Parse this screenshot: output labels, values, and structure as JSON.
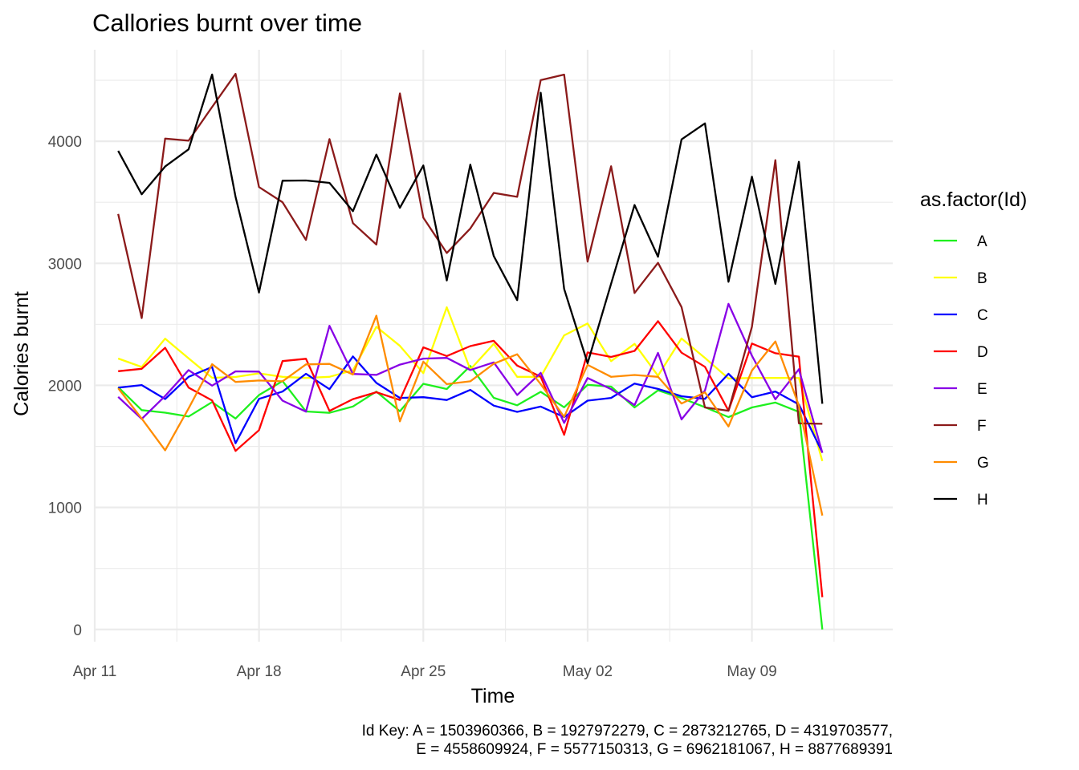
{
  "chart_data": {
    "type": "line",
    "title": "Callories burnt over time",
    "xlabel": "Time",
    "ylabel": "Calories burnt",
    "x_ticks": [
      "Apr 11",
      "Apr 18",
      "Apr 25",
      "May 02",
      "May 09"
    ],
    "y_ticks": [
      "0",
      "1000",
      "2000",
      "3000",
      "4000"
    ],
    "ylim": [
      -100,
      4750
    ],
    "xlim": [
      "2016-04-11",
      "2016-05-15"
    ],
    "legend_title": "as.factor(Id)",
    "legend_position": "right",
    "grid": true,
    "x": [
      "2016-04-12",
      "2016-04-13",
      "2016-04-14",
      "2016-04-15",
      "2016-04-16",
      "2016-04-17",
      "2016-04-18",
      "2016-04-19",
      "2016-04-20",
      "2016-04-21",
      "2016-04-22",
      "2016-04-23",
      "2016-04-24",
      "2016-04-25",
      "2016-04-26",
      "2016-04-27",
      "2016-04-28",
      "2016-04-29",
      "2016-04-30",
      "2016-05-01",
      "2016-05-02",
      "2016-05-03",
      "2016-05-04",
      "2016-05-05",
      "2016-05-06",
      "2016-05-07",
      "2016-05-08",
      "2016-05-09",
      "2016-05-10",
      "2016-05-11",
      "2016-05-12"
    ],
    "series": [
      {
        "name": "A",
        "color": "#1ef01e",
        "values": [
          1985,
          1797,
          1776,
          1745,
          1863,
          1728,
          1921,
          2035,
          1786,
          1775,
          1827,
          1949,
          1788,
          2013,
          1970,
          2159,
          1898,
          1837,
          1947,
          1820,
          2004,
          1990,
          1819,
          1959,
          1896,
          1821,
          1740,
          1819,
          1859,
          1783,
          0
        ]
      },
      {
        "name": "B",
        "color": "#ffff00",
        "values": [
          2220,
          2151,
          2383,
          2221,
          2062,
          2069,
          2098,
          2070,
          2061,
          2070,
          2123,
          2480,
          2324,
          2100,
          2640,
          2130,
          2340,
          2070,
          2070,
          2410,
          2507,
          2198,
          2340,
          2079,
          2384,
          2225,
          2056,
          2061,
          2061,
          2061,
          1380
        ]
      },
      {
        "name": "C",
        "color": "#0000ff",
        "values": [
          1981,
          2002,
          1888,
          2070,
          2150,
          1526,
          1889,
          1949,
          2095,
          1969,
          2237,
          2020,
          1897,
          1903,
          1880,
          1963,
          1834,
          1783,
          1826,
          1740,
          1875,
          1897,
          2015,
          1971,
          1911,
          1889,
          2095,
          1903,
          1950,
          1844,
          1451
        ]
      },
      {
        "name": "D",
        "color": "#ff0000",
        "values": [
          2116,
          2136,
          2308,
          1982,
          1877,
          1463,
          1633,
          2199,
          2218,
          1791,
          1887,
          1944,
          1880,
          2311,
          2240,
          2322,
          2365,
          2162,
          2071,
          1595,
          2270,
          2233,
          2282,
          2526,
          2268,
          2152,
          1793,
          2343,
          2263,
          2235,
          265
        ]
      },
      {
        "name": "E",
        "color": "#8800e6",
        "values": [
          1906,
          1725,
          1913,
          2125,
          1998,
          2115,
          2113,
          1875,
          1785,
          2488,
          2094,
          2086,
          2170,
          2219,
          2225,
          2126,
          2188,
          1921,
          2102,
          1693,
          2060,
          1969,
          1838,
          2266,
          1721,
          1958,
          2668,
          2243,
          1886,
          2132,
          1447
        ]
      },
      {
        "name": "F",
        "color": "#8b1a1a",
        "values": [
          3405,
          2551,
          4022,
          4005,
          4281,
          4552,
          3625,
          3501,
          3192,
          4018,
          3329,
          3154,
          4392,
          3374,
          3085,
          3285,
          3577,
          3545,
          4501,
          4546,
          3014,
          3795,
          2757,
          3004,
          2642,
          1819,
          1792,
          2480,
          3846,
          1689,
          1685
        ]
      },
      {
        "name": "G",
        "color": "#ff8c00",
        "values": [
          1976,
          1728,
          1468,
          1811,
          2173,
          2028,
          2040,
          2033,
          2172,
          2176,
          2089,
          2571,
          1705,
          2194,
          2010,
          2033,
          2177,
          2255,
          2010,
          1742,
          2168,
          2070,
          2085,
          2070,
          1851,
          1943,
          1663,
          2121,
          2360,
          1835,
          933
        ]
      },
      {
        "name": "H",
        "color": "#000000",
        "values": [
          3921,
          3566,
          3793,
          3934,
          4547,
          3545,
          2761,
          3677,
          3679,
          3659,
          3427,
          3891,
          3455,
          3802,
          2860,
          3808,
          3060,
          2698,
          4398,
          2790,
          2181,
          2833,
          3478,
          3054,
          4015,
          4147,
          2849,
          3710,
          2832,
          3832,
          1849
        ]
      }
    ],
    "caption_lines": [
      "Id Key: A = 1503960366, B = 1927972279, C = 2873212765, D = 4319703577,",
      "E = 4558609924, F = 5577150313, G = 6962181067, H = 8877689391"
    ]
  }
}
